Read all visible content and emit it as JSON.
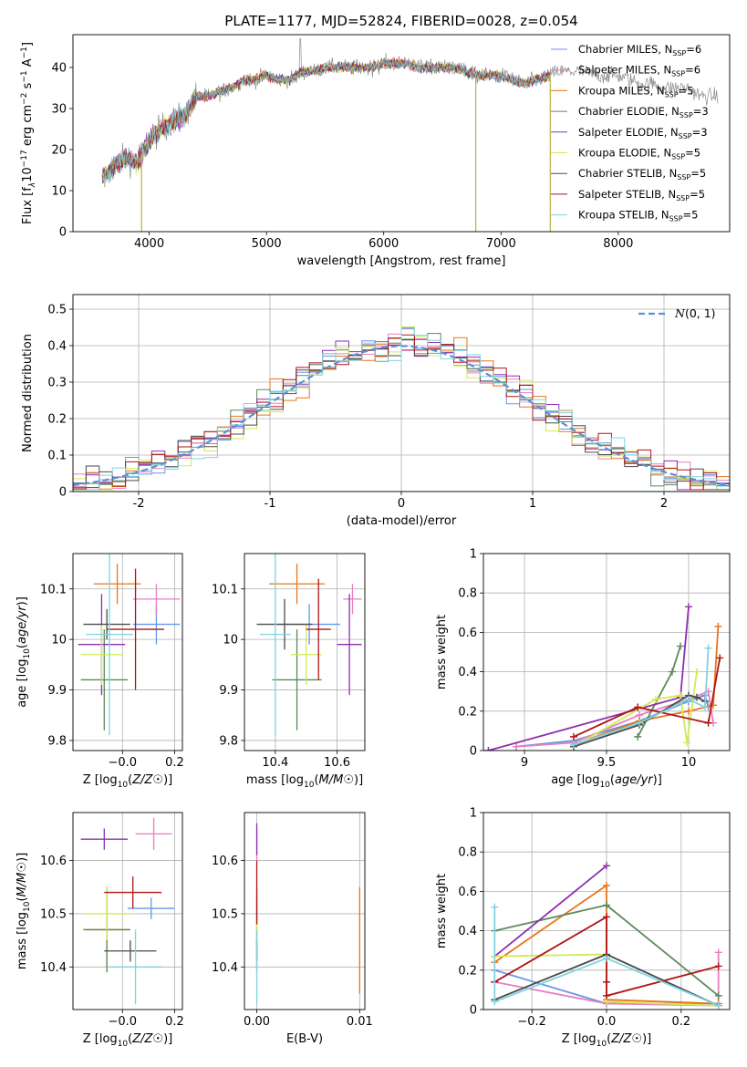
{
  "figure": {
    "title": "PLATE=1177, MJD=52824, FIBERID=0028, z=0.054"
  },
  "colors": {
    "Chabrier MILES": "#6495ed",
    "Salpeter MILES": "#e87fc0",
    "Kroupa MILES": "#e8751a",
    "Chabrier ELODIE": "#5b8a5b",
    "Salpeter ELODIE": "#8e2fb0",
    "Kroupa ELODIE": "#d2ea52",
    "Chabrier STELIB": "#4a4a4a",
    "Salpeter STELIB": "#b01515",
    "Kroupa STELIB": "#7fd3e0",
    "data": "#8c8c8c",
    "normal": "#5b8fd6"
  },
  "models": [
    "Chabrier MILES",
    "Salpeter MILES",
    "Kroupa MILES",
    "Chabrier ELODIE",
    "Salpeter ELODIE",
    "Kroupa ELODIE",
    "Chabrier STELIB",
    "Salpeter STELIB",
    "Kroupa STELIB"
  ],
  "chart_data": [
    {
      "id": "spectrum",
      "type": "line",
      "title": "PLATE=1177, MJD=52824, FIBERID=0028, z=0.054",
      "xlabel": "wavelength [Angstrom, rest frame]",
      "ylabel": "Flux [f_λ 10^-17 erg cm^-2 s^-1 A^-1]",
      "xlim": [
        3350,
        8950
      ],
      "ylim": [
        0,
        48
      ],
      "xticks": [
        4000,
        5000,
        6000,
        7000,
        8000
      ],
      "yticks": [
        0,
        10,
        20,
        30,
        40
      ],
      "grid": false,
      "legend_position": "top-right",
      "legend": [
        "Chabrier MILES, N_SSP=6",
        "Salpeter MILES, N_SSP=6",
        "Kroupa MILES, N_SSP=5",
        "Chabrier ELODIE, N_SSP=3",
        "Salpeter ELODIE, N_SSP=3",
        "Kroupa ELODIE, N_SSP=5",
        "Chabrier STELIB, N_SSP=5",
        "Salpeter STELIB, N_SSP=5",
        "Kroupa STELIB, N_SSP=5"
      ],
      "continuum": {
        "x": [
          3600,
          3700,
          3800,
          3900,
          4000,
          4100,
          4200,
          4300,
          4400,
          4500,
          4600,
          4700,
          4800,
          4900,
          5000,
          5100,
          5200,
          5300,
          5400,
          5500,
          5600,
          5700,
          5800,
          5900,
          6000,
          6100,
          6200,
          6300,
          6400,
          6500,
          6600,
          6700,
          6800,
          6900,
          7000,
          7100,
          7200,
          7300,
          7400,
          7500,
          7600,
          7700,
          7800,
          7900,
          8000,
          8100,
          8200,
          8300,
          8400,
          8500,
          8600,
          8700,
          8800
        ],
        "y": [
          13,
          16,
          18,
          17,
          22,
          25,
          27,
          28,
          33,
          33,
          34,
          35,
          37,
          37,
          38,
          37,
          37,
          39,
          39,
          40,
          40,
          40,
          40,
          40,
          41,
          41,
          41,
          40,
          40,
          40,
          40,
          39,
          38,
          38,
          38,
          37,
          36,
          37,
          38,
          39,
          39,
          39,
          38,
          38,
          38,
          37,
          36,
          36,
          35,
          35,
          35,
          33,
          33
        ]
      },
      "data_range": [
        3600,
        8850
      ],
      "model_range": [
        3600,
        7420
      ],
      "dips": [
        {
          "x": 3935,
          "model": "Chabrier ELODIE"
        },
        {
          "x": 6785,
          "model": "Chabrier ELODIE"
        },
        {
          "x": 7420,
          "model": "Kroupa MILES"
        }
      ],
      "spike": {
        "x": 5290,
        "y": 47
      }
    },
    {
      "id": "residuals",
      "type": "histogram",
      "xlabel": "(data-model)/error",
      "ylabel": "Normed distribution",
      "xlim": [
        -2.5,
        2.5
      ],
      "ylim": [
        0,
        0.54
      ],
      "xticks": [
        -2,
        -1,
        0,
        1,
        2
      ],
      "yticks": [
        0.0,
        0.1,
        0.2,
        0.3,
        0.4,
        0.5
      ],
      "grid": true,
      "bins": 50,
      "legend": [
        "N(0,1)"
      ],
      "legend_position": "top-right"
    },
    {
      "id": "age_vs_Z",
      "type": "errorbar",
      "xlabel": "Z [log10(Z/Z☉)]",
      "ylabel": "age [log10(age/yr)]",
      "xlim": [
        -0.19,
        0.23
      ],
      "ylim": [
        9.78,
        10.17
      ],
      "xticks": [
        -0.0,
        0.2
      ],
      "yticks": [
        9.8,
        9.9,
        10.0,
        10.1
      ],
      "grid": true,
      "points": [
        {
          "model": "Chabrier MILES",
          "x": 0.13,
          "xerr": 0.09,
          "y": 10.03,
          "yerr": 0.04
        },
        {
          "model": "Salpeter MILES",
          "x": 0.13,
          "xerr": 0.09,
          "y": 10.08,
          "yerr": 0.03
        },
        {
          "model": "Kroupa MILES",
          "x": -0.02,
          "xerr": 0.09,
          "y": 10.11,
          "yerr": 0.04
        },
        {
          "model": "Chabrier ELODIE",
          "x": -0.07,
          "xerr": 0.09,
          "y": 9.92,
          "yerr": 0.1
        },
        {
          "model": "Salpeter ELODIE",
          "x": -0.08,
          "xerr": 0.09,
          "y": 9.99,
          "yerr": 0.1
        },
        {
          "model": "Kroupa ELODIE",
          "x": -0.08,
          "xerr": 0.08,
          "y": 9.97,
          "yerr": 0.06
        },
        {
          "model": "Chabrier STELIB",
          "x": -0.06,
          "xerr": 0.09,
          "y": 10.03,
          "yerr": 0.03
        },
        {
          "model": "Salpeter STELIB",
          "x": 0.05,
          "xerr": 0.11,
          "y": 10.02,
          "yerr": 0.12
        },
        {
          "model": "Kroupa STELIB",
          "x": -0.05,
          "xerr": 0.09,
          "y": 10.01,
          "yerr": 0.2
        }
      ]
    },
    {
      "id": "age_vs_mass",
      "type": "errorbar",
      "xlabel": "mass [log10(M/M☉)]",
      "xlim": [
        10.3,
        10.69
      ],
      "ylim": [
        9.78,
        10.17
      ],
      "xticks": [
        10.4,
        10.6
      ],
      "yticks": [
        9.8,
        9.9,
        10.0,
        10.1
      ],
      "grid": true,
      "points": [
        {
          "model": "Chabrier MILES",
          "x": 10.51,
          "xerr": 0.1,
          "y": 10.03,
          "yerr": 0.04
        },
        {
          "model": "Salpeter MILES",
          "x": 10.65,
          "xerr": 0.03,
          "y": 10.08,
          "yerr": 0.03
        },
        {
          "model": "Kroupa MILES",
          "x": 10.47,
          "xerr": 0.09,
          "y": 10.11,
          "yerr": 0.04
        },
        {
          "model": "Chabrier ELODIE",
          "x": 10.47,
          "xerr": 0.08,
          "y": 9.92,
          "yerr": 0.1
        },
        {
          "model": "Salpeter ELODIE",
          "x": 10.64,
          "xerr": 0.04,
          "y": 9.99,
          "yerr": 0.1
        },
        {
          "model": "Kroupa ELODIE",
          "x": 10.5,
          "xerr": 0.05,
          "y": 9.97,
          "yerr": 0.06
        },
        {
          "model": "Chabrier STELIB",
          "x": 10.43,
          "xerr": 0.09,
          "y": 10.03,
          "yerr": 0.05
        },
        {
          "model": "Salpeter STELIB",
          "x": 10.54,
          "xerr": 0.04,
          "y": 10.02,
          "yerr": 0.1
        },
        {
          "model": "Kroupa STELIB",
          "x": 10.4,
          "xerr": 0.05,
          "y": 10.01,
          "yerr": 0.2
        }
      ]
    },
    {
      "id": "weight_vs_age",
      "type": "line",
      "xlabel": "age [log10(age/yr)]",
      "ylabel": "mass weight",
      "xlim": [
        8.75,
        10.25
      ],
      "ylim": [
        0,
        1
      ],
      "xticks": [
        9.0,
        9.5,
        10.0
      ],
      "yticks": [
        0.0,
        0.2,
        0.4,
        0.6,
        0.8,
        1.0
      ],
      "grid": true,
      "series": [
        {
          "model": "Chabrier MILES",
          "x": [
            8.95,
            9.3,
            9.7,
            10.0,
            10.1,
            10.12
          ],
          "y": [
            0.02,
            0.05,
            0.15,
            0.25,
            0.28,
            0.22
          ]
        },
        {
          "model": "Salpeter MILES",
          "x": [
            8.95,
            9.3,
            9.7,
            10.0,
            10.12,
            10.15
          ],
          "y": [
            0.02,
            0.04,
            0.18,
            0.26,
            0.3,
            0.14
          ]
        },
        {
          "model": "Kroupa MILES",
          "x": [
            9.3,
            9.7,
            10.0,
            10.15,
            10.18
          ],
          "y": [
            0.03,
            0.15,
            0.2,
            0.23,
            0.63
          ]
        },
        {
          "model": "Chabrier ELODIE",
          "x": [
            9.69,
            9.9,
            9.95
          ],
          "y": [
            0.07,
            0.4,
            0.53
          ]
        },
        {
          "model": "Salpeter ELODIE",
          "x": [
            8.78,
            9.95,
            10.0
          ],
          "y": [
            0.0,
            0.27,
            0.73
          ]
        },
        {
          "model": "Kroupa ELODIE",
          "x": [
            9.3,
            9.8,
            9.95,
            9.99,
            10.05
          ],
          "y": [
            0.02,
            0.26,
            0.28,
            0.04,
            0.4
          ]
        },
        {
          "model": "Chabrier STELIB",
          "x": [
            9.3,
            9.7,
            10.0,
            10.05,
            10.1
          ],
          "y": [
            0.02,
            0.13,
            0.28,
            0.27,
            0.25
          ]
        },
        {
          "model": "Salpeter STELIB",
          "x": [
            9.3,
            9.69,
            10.12,
            10.19
          ],
          "y": [
            0.07,
            0.22,
            0.14,
            0.47
          ]
        },
        {
          "model": "Kroupa STELIB",
          "x": [
            9.3,
            9.7,
            10.0,
            10.1,
            10.12
          ],
          "y": [
            0.03,
            0.14,
            0.26,
            0.22,
            0.52
          ]
        }
      ]
    },
    {
      "id": "mass_vs_Z",
      "type": "errorbar",
      "xlabel": "Z [log10(Z/Z☉)]",
      "ylabel": "mass [log10(M/M☉)]",
      "xlim": [
        -0.19,
        0.23
      ],
      "ylim": [
        10.32,
        10.69
      ],
      "xticks": [
        -0.0,
        0.2
      ],
      "yticks": [
        10.4,
        10.5,
        10.6
      ],
      "grid": true,
      "points": [
        {
          "model": "Chabrier MILES",
          "x": 0.11,
          "xerr": 0.09,
          "y": 10.51,
          "yerr": 0.02
        },
        {
          "model": "Salpeter MILES",
          "x": 0.12,
          "xerr": 0.07,
          "y": 10.65,
          "yerr": 0.03
        },
        {
          "model": "Kroupa MILES",
          "x": -0.06,
          "xerr": 0.09,
          "y": 10.47,
          "yerr": 0.08
        },
        {
          "model": "Chabrier ELODIE",
          "x": -0.06,
          "xerr": 0.09,
          "y": 10.47,
          "yerr": 0.08
        },
        {
          "model": "Salpeter ELODIE",
          "x": -0.07,
          "xerr": 0.09,
          "y": 10.64,
          "yerr": 0.02
        },
        {
          "model": "Kroupa ELODIE",
          "x": -0.06,
          "xerr": 0.09,
          "y": 10.5,
          "yerr": 0.05
        },
        {
          "model": "Chabrier STELIB",
          "x": 0.03,
          "xerr": 0.1,
          "y": 10.43,
          "yerr": 0.02
        },
        {
          "model": "Salpeter STELIB",
          "x": 0.04,
          "xerr": 0.11,
          "y": 10.54,
          "yerr": 0.03
        },
        {
          "model": "Kroupa STELIB",
          "x": 0.05,
          "xerr": 0.1,
          "y": 10.4,
          "yerr": 0.07
        }
      ]
    },
    {
      "id": "mass_vs_EBV",
      "type": "errorbar",
      "xlabel": "E(B-V)",
      "xlim": [
        -0.0012,
        0.0105
      ],
      "ylim": [
        10.32,
        10.69
      ],
      "xticks": [
        0.0,
        0.01
      ],
      "yticks": [
        10.4,
        10.5,
        10.6
      ],
      "grid": true,
      "points": [
        {
          "model": "Chabrier MILES",
          "x": 0.0,
          "xerr": 0,
          "y": 10.51,
          "yerr": 0.02
        },
        {
          "model": "Salpeter MILES",
          "x": 0.0,
          "xerr": 0,
          "y": 10.63,
          "yerr": 0.03
        },
        {
          "model": "Kroupa MILES",
          "x": 0.01,
          "xerr": 0,
          "y": 10.45,
          "yerr": 0.1
        },
        {
          "model": "Chabrier ELODIE",
          "x": 0.0,
          "xerr": 0,
          "y": 10.47,
          "yerr": 0.08
        },
        {
          "model": "Salpeter ELODIE",
          "x": 0.0,
          "xerr": 0,
          "y": 10.64,
          "yerr": 0.03
        },
        {
          "model": "Kroupa ELODIE",
          "x": 0.0,
          "xerr": 0,
          "y": 10.5,
          "yerr": 0.05
        },
        {
          "model": "Chabrier STELIB",
          "x": 0.0,
          "xerr": 0,
          "y": 10.43,
          "yerr": 0.02
        },
        {
          "model": "Salpeter STELIB",
          "x": 0.0,
          "xerr": 0,
          "y": 10.54,
          "yerr": 0.06
        },
        {
          "model": "Kroupa STELIB",
          "x": 0.0,
          "xerr": 0,
          "y": 10.4,
          "yerr": 0.07
        }
      ]
    },
    {
      "id": "weight_vs_Z",
      "type": "line",
      "xlabel": "Z [log10(Z/Z☉)]",
      "ylabel": "mass weight",
      "xlim": [
        -0.33,
        0.33
      ],
      "ylim": [
        0,
        1
      ],
      "xticks": [
        -0.2,
        0.0,
        0.2
      ],
      "yticks": [
        0.0,
        0.2,
        0.4,
        0.6,
        0.8,
        1.0
      ],
      "grid": true,
      "series": [
        {
          "model": "Chabrier MILES",
          "x": [
            -0.3,
            0.0,
            0.3
          ],
          "y": [
            0.2,
            0.03,
            0.03
          ]
        },
        {
          "model": "Salpeter MILES",
          "x": [
            -0.3,
            0.0,
            0.3,
            0.3
          ],
          "y": [
            0.14,
            0.03,
            0.02,
            0.29
          ]
        },
        {
          "model": "Kroupa MILES",
          "x": [
            -0.3,
            0.0,
            0.0,
            0.3
          ],
          "y": [
            0.24,
            0.63,
            0.05,
            0.03
          ]
        },
        {
          "model": "Chabrier ELODIE",
          "x": [
            -0.3,
            0.0,
            0.3
          ],
          "y": [
            0.4,
            0.53,
            0.07
          ]
        },
        {
          "model": "Salpeter ELODIE",
          "x": [
            -0.3,
            0.0
          ],
          "y": [
            0.27,
            0.73
          ]
        },
        {
          "model": "Kroupa ELODIE",
          "x": [
            -0.3,
            0.0,
            0.0,
            0.3
          ],
          "y": [
            0.27,
            0.28,
            0.04,
            0.02
          ]
        },
        {
          "model": "Chabrier STELIB",
          "x": [
            -0.3,
            0.0,
            0.3
          ],
          "y": [
            0.05,
            0.28,
            0.02
          ]
        },
        {
          "model": "Salpeter STELIB",
          "x": [
            -0.3,
            0.0,
            0.0,
            0.0,
            0.3
          ],
          "y": [
            0.14,
            0.47,
            0.14,
            0.07,
            0.22
          ]
        },
        {
          "model": "Kroupa STELIB",
          "x": [
            -0.3,
            -0.3,
            0.0,
            0.3
          ],
          "y": [
            0.52,
            0.04,
            0.26,
            0.02
          ]
        }
      ]
    }
  ]
}
